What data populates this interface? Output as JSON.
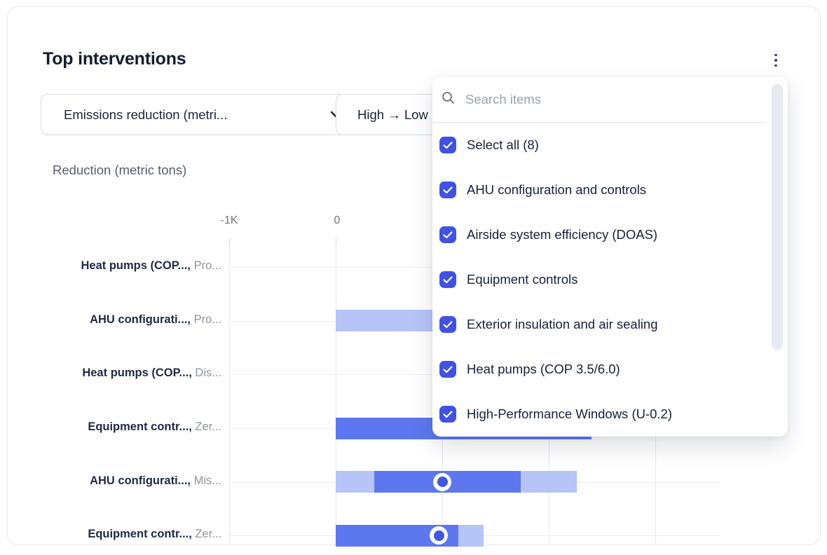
{
  "card": {
    "title": "Top interventions",
    "menu_icon": "kebab-vertical-icon"
  },
  "filters": {
    "metric_dropdown": {
      "value": "Emissions reduction (metri...",
      "icon": "chevron-down-icon"
    },
    "sort_dropdown": {
      "value": "High → Low"
    }
  },
  "dropdown_panel": {
    "search": {
      "placeholder": "Search items",
      "icon": "search-icon"
    },
    "checkbox_icon": "check-icon",
    "items": [
      {
        "label": "Select all (8)",
        "checked": true
      },
      {
        "label": "AHU configuration and controls",
        "checked": true
      },
      {
        "label": "Airside system efficiency (DOAS)",
        "checked": true
      },
      {
        "label": "Equipment controls",
        "checked": true
      },
      {
        "label": "Exterior insulation and air sealing",
        "checked": true
      },
      {
        "label": "Heat pumps (COP 3.5/6.0)",
        "checked": true
      },
      {
        "label": "High-Performance Windows (U-0.2)",
        "checked": true
      }
    ]
  },
  "chart_data": {
    "type": "bar",
    "orientation": "horizontal",
    "title": "Reduction (metric tons)",
    "xlabel": "Reduction (metric tons)",
    "x_tick_labels": [
      {
        "label": "-1K",
        "value_k": -1
      },
      {
        "label": "0",
        "value_k": 0
      }
    ],
    "x_gridlines_k": [
      -1,
      0,
      1,
      2,
      3
    ],
    "x_range_k": [
      -1.6,
      3.6
    ],
    "grid": true,
    "categories": [
      {
        "name": "Heat pumps (COP...,",
        "scenario": "Pro..."
      },
      {
        "name": "AHU configurati...,",
        "scenario": "Pro..."
      },
      {
        "name": "Heat pumps (COP...,",
        "scenario": "Dis..."
      },
      {
        "name": "Equipment contr...,",
        "scenario": "Zer..."
      },
      {
        "name": "AHU configurati...,",
        "scenario": "Mis..."
      },
      {
        "name": "Equipment contr...,",
        "scenario": "Zer..."
      }
    ],
    "rows": [
      {
        "segments": [],
        "marker_k": null
      },
      {
        "segments": [
          {
            "from_k": 0,
            "to_k": 2.4,
            "tone": "light"
          }
        ],
        "marker_k": null
      },
      {
        "segments": [],
        "marker_k": null
      },
      {
        "segments": [
          {
            "from_k": 0,
            "to_k": 2.4,
            "tone": "dark"
          }
        ],
        "marker_k": null
      },
      {
        "segments": [
          {
            "from_k": 0,
            "to_k": 0.36,
            "tone": "light"
          },
          {
            "from_k": 0.36,
            "to_k": 1.74,
            "tone": "dark"
          },
          {
            "from_k": 1.74,
            "to_k": 2.26,
            "tone": "light"
          }
        ],
        "marker_k": 1.0
      },
      {
        "segments": [
          {
            "from_k": 0,
            "to_k": 1.15,
            "tone": "dark"
          },
          {
            "from_k": 1.15,
            "to_k": 1.39,
            "tone": "light"
          }
        ],
        "marker_k": 0.97
      }
    ]
  },
  "colors": {
    "accent_checkbox": "#4152e1",
    "bar_dark": "#5d78ee",
    "bar_light": "#b7c4f8",
    "marker_inner": "#4157dd",
    "title_text": "#121d33",
    "gridline": "#e6e9ef",
    "scrollbar_thumb": "#e8eaef"
  }
}
